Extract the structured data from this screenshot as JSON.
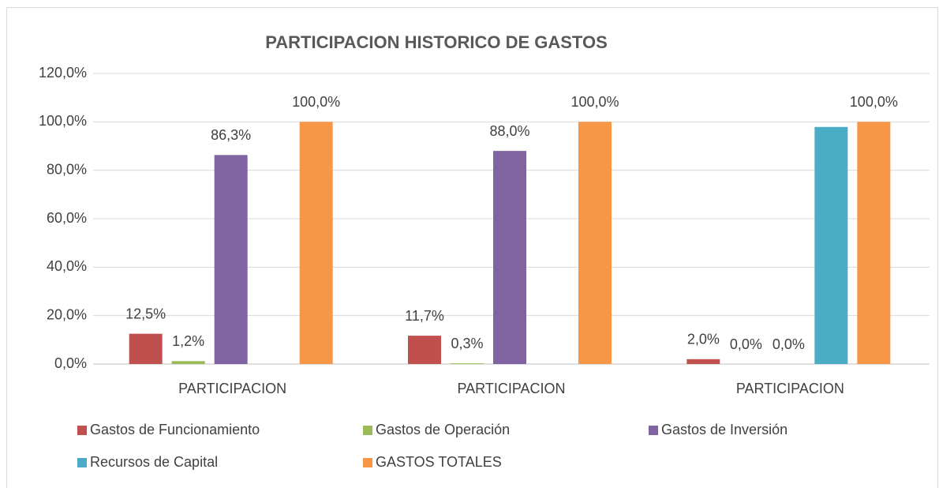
{
  "chart_data": {
    "type": "bar",
    "title": "PARTICIPACION HISTORICO DE GASTOS",
    "categories": [
      "PARTICIPACION",
      "PARTICIPACION",
      "PARTICIPACION"
    ],
    "series": [
      {
        "name": "Gastos de Funcionamiento",
        "color": "#c0504d",
        "values": [
          12.5,
          11.7,
          2.0
        ],
        "value_labels": [
          "12,5%",
          "11,7%",
          "2,0%"
        ]
      },
      {
        "name": "Gastos de Operación",
        "color": "#9bbb59",
        "values": [
          1.2,
          0.3,
          0.0
        ],
        "value_labels": [
          "1,2%",
          "0,3%",
          "0,0%"
        ]
      },
      {
        "name": "Gastos de Inversión",
        "color": "#8064a2",
        "values": [
          86.3,
          88.0,
          0.0
        ],
        "value_labels": [
          "86,3%",
          "88,0%",
          "0,0%"
        ]
      },
      {
        "name": "Recursos de Capital",
        "color": "#4bacc6",
        "values": [
          null,
          null,
          97.9
        ],
        "value_labels": [
          null,
          null,
          null
        ]
      },
      {
        "name": "GASTOS TOTALES",
        "color": "#f79646",
        "values": [
          100,
          100,
          100
        ],
        "value_labels": [
          "100,0%",
          "100,0%",
          "100,0%"
        ]
      }
    ],
    "ylim": [
      0,
      120
    ],
    "yticks": [
      {
        "value": 0,
        "label": "0,0%"
      },
      {
        "value": 20,
        "label": "20,0%"
      },
      {
        "value": 40,
        "label": "40,0%"
      },
      {
        "value": 60,
        "label": "60,0%"
      },
      {
        "value": 80,
        "label": "80,0%"
      },
      {
        "value": 100,
        "label": "100,0%"
      },
      {
        "value": 120,
        "label": "120,0%"
      }
    ],
    "grid": true,
    "legend": "bottom"
  }
}
